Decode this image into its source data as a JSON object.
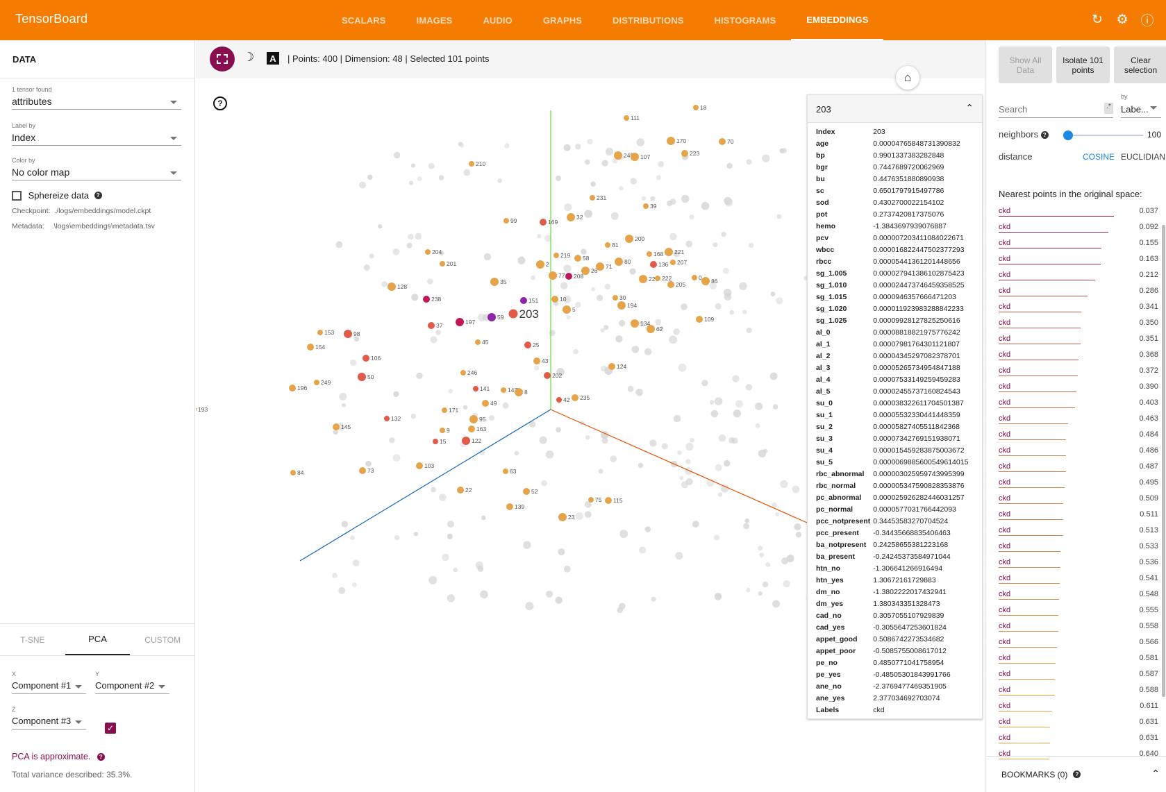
{
  "app": {
    "title": "TensorBoard"
  },
  "nav": {
    "tabs": [
      "SCALARS",
      "IMAGES",
      "AUDIO",
      "GRAPHS",
      "DISTRIBUTIONS",
      "HISTOGRAMS",
      "EMBEDDINGS"
    ],
    "active": "EMBEDDINGS",
    "icons": [
      "refresh-icon",
      "gear-icon",
      "help-icon"
    ]
  },
  "data_panel": {
    "header": "DATA",
    "tensor_count": "1 tensor found",
    "tensor_value": "attributes",
    "label_by_label": "Label by",
    "label_by_value": "Index",
    "color_by_label": "Color by",
    "color_by_value": "No color map",
    "sphereize_label": "Sphereize data",
    "checkpoint_label": "Checkpoint:",
    "checkpoint_value": "./logs/embeddings/model.ckpt",
    "metadata_label": "Metadata:",
    "metadata_value": ".\\logs\\embeddings\\metadata.tsv"
  },
  "projection": {
    "tabs": [
      "T-SNE",
      "PCA",
      "CUSTOM"
    ],
    "active": "PCA",
    "x_label": "X",
    "x_value": "Component #1",
    "y_label": "Y",
    "y_value": "Component #2",
    "z_label": "Z",
    "z_value": "Component #3",
    "pca_note": "PCA is approximate.",
    "variance": "Total variance described: 35.3%."
  },
  "toolbar": {
    "stats": "Points: 400 | Dimension: 48 | Selected 101 points"
  },
  "inspector": {
    "title": "203",
    "rows": [
      [
        "Index",
        "203"
      ],
      [
        "age",
        "0.00004765848731390832"
      ],
      [
        "bp",
        "0.9901337383282848"
      ],
      [
        "bgr",
        "0.7447689720062969"
      ],
      [
        "bu",
        "0.4476351880890938"
      ],
      [
        "sc",
        "0.6501797915497786"
      ],
      [
        "sod",
        "0.4302700022154102"
      ],
      [
        "pot",
        "0.2737420817375076"
      ],
      [
        "hemo",
        "-1.3843697939076887"
      ],
      [
        "pcv",
        "0.000007203411084022671"
      ],
      [
        "wbcc",
        "0.000016822447502377293"
      ],
      [
        "rbcc",
        "0.0000544136120144865​6"
      ],
      [
        "sg_1.005",
        "0.000027941386102875423"
      ],
      [
        "sg_1.010",
        "0.000024473746459358525"
      ],
      [
        "sg_1.015",
        "0.0000946357666471203"
      ],
      [
        "sg_1.020",
        "0.000011923983288842233"
      ],
      [
        "sg_1.025",
        "0.000099281278252506​16"
      ],
      [
        "al_0",
        "0.000088188219757762​42"
      ],
      [
        "al_1",
        "0.00007981764301121807"
      ],
      [
        "al_2",
        "0.00004345297082378701"
      ],
      [
        "al_3",
        "0.00005265734954847188"
      ],
      [
        "al_4",
        "0.00007533149259459283"
      ],
      [
        "al_5",
        "0.00002455737160824543"
      ],
      [
        "su_0",
        "0.00003832261170450138​7"
      ],
      [
        "su_1",
        "0.00005532330441448359"
      ],
      [
        "su_2",
        "0.00005827405511842368"
      ],
      [
        "su_3",
        "0.00007342769151938071"
      ],
      [
        "su_4",
        "0.000015459283875003672"
      ],
      [
        "su_5",
        "0.0000069885600549614015"
      ],
      [
        "rbc_abnormal",
        "0.000003025959743995399"
      ],
      [
        "rbc_normal",
        "0.000005347590828353876"
      ],
      [
        "pc_abnormal",
        "0.000025926282446031257"
      ],
      [
        "pc_normal",
        "0.00005770317664420​93"
      ],
      [
        "pcc_notpresent",
        "0.34453583270704524"
      ],
      [
        "pcc_present",
        "-0.34435668835406463"
      ],
      [
        "ba_notpresent",
        "0.24258655381223168"
      ],
      [
        "ba_present",
        "-0.24245373584971044"
      ],
      [
        "htn_no",
        "-1.306641266916494"
      ],
      [
        "htn_yes",
        "1.30672161729883"
      ],
      [
        "dm_no",
        "-1.3802222017432941"
      ],
      [
        "dm_yes",
        "1.380343351328473"
      ],
      [
        "cad_no",
        "0.3057055107929839"
      ],
      [
        "cad_yes",
        "-0.30556472536018​24"
      ],
      [
        "appet_good",
        "0.5086742273534682"
      ],
      [
        "appet_poor",
        "-0.5085755008617012"
      ],
      [
        "pe_no",
        "0.4850771041758954"
      ],
      [
        "pe_yes",
        "-0.48505301843991766"
      ],
      [
        "ane_no",
        "-2.3769477469351905"
      ],
      [
        "ane_yes",
        "2.377034692703074"
      ],
      [
        "Labels",
        "ckd"
      ]
    ]
  },
  "inspector_panel": {
    "show_all": "Show All Data",
    "isolate": "Isolate 101 points",
    "clear": "Clear selection",
    "search_placeholder": "Search",
    "regex": ".*",
    "by_label": "by",
    "by_value": "Labe...",
    "neighbors_label": "neighbors",
    "neighbors_value": "100",
    "neighbors_fraction": 1.0,
    "distance_label": "distance",
    "cosine": "COSINE",
    "euclidian": "EUCLIDIAN",
    "nearest_title": "Nearest points in the original space:",
    "nearest": [
      [
        "ckd",
        "0.037"
      ],
      [
        "ckd",
        "0.092"
      ],
      [
        "ckd",
        "0.155"
      ],
      [
        "ckd",
        "0.163"
      ],
      [
        "ckd",
        "0.212"
      ],
      [
        "ckd",
        "0.286"
      ],
      [
        "ckd",
        "0.341"
      ],
      [
        "ckd",
        "0.350"
      ],
      [
        "ckd",
        "0.351"
      ],
      [
        "ckd",
        "0.368"
      ],
      [
        "ckd",
        "0.372"
      ],
      [
        "ckd",
        "0.390"
      ],
      [
        "ckd",
        "0.403"
      ],
      [
        "ckd",
        "0.463"
      ],
      [
        "ckd",
        "0.484"
      ],
      [
        "ckd",
        "0.486"
      ],
      [
        "ckd",
        "0.487"
      ],
      [
        "ckd",
        "0.495"
      ],
      [
        "ckd",
        "0.509"
      ],
      [
        "ckd",
        "0.511"
      ],
      [
        "ckd",
        "0.513"
      ],
      [
        "ckd",
        "0.533"
      ],
      [
        "ckd",
        "0.536"
      ],
      [
        "ckd",
        "0.541"
      ],
      [
        "ckd",
        "0.548"
      ],
      [
        "ckd",
        "0.555"
      ],
      [
        "ckd",
        "0.558"
      ],
      [
        "ckd",
        "0.566"
      ],
      [
        "ckd",
        "0.581"
      ],
      [
        "ckd",
        "0.587"
      ],
      [
        "ckd",
        "0.588"
      ],
      [
        "ckd",
        "0.611"
      ],
      [
        "ckd",
        "0.631"
      ],
      [
        "ckd",
        "0.631"
      ],
      [
        "ckd",
        "0.640"
      ]
    ],
    "bookmarks": "BOOKMARKS (0)"
  },
  "colors": {
    "brand": "#f57c00",
    "accent": "#880e4f",
    "point_orange": "#e6a44a",
    "point_red": "#e25a4a",
    "point_magenta": "#c2185b",
    "point_purple": "#8e24aa",
    "point_gray": "#d6d6d6",
    "axis_x": "#e65100",
    "axis_y": "#66dd44",
    "axis_z": "#1565c0"
  },
  "scene": {
    "selected_label": "203",
    "labeled_points": [
      [
        "18",
        "o"
      ],
      [
        "111",
        "o"
      ],
      [
        "70",
        "o"
      ],
      [
        "170",
        "o"
      ],
      [
        "248",
        "o"
      ],
      [
        "107",
        "o"
      ],
      [
        "223",
        "o"
      ],
      [
        "210",
        "o"
      ],
      [
        "231",
        "o"
      ],
      [
        "39",
        "o"
      ],
      [
        "99",
        "o"
      ],
      [
        "169",
        "r"
      ],
      [
        "32",
        "o"
      ],
      [
        "81",
        "o"
      ],
      [
        "200",
        "o"
      ],
      [
        "168",
        "o"
      ],
      [
        "221",
        "o"
      ],
      [
        "204",
        "o"
      ],
      [
        "219",
        "o"
      ],
      [
        "58",
        "o"
      ],
      [
        "80",
        "o"
      ],
      [
        "136",
        "r"
      ],
      [
        "207",
        "o"
      ],
      [
        "201",
        "o"
      ],
      [
        "2",
        "o"
      ],
      [
        "71",
        "o"
      ],
      [
        "26",
        "o"
      ],
      [
        "77",
        "o"
      ],
      [
        "208",
        "m"
      ],
      [
        "227",
        "o"
      ],
      [
        "222",
        "o"
      ],
      [
        "0",
        "o"
      ],
      [
        "86",
        "o"
      ],
      [
        "128",
        "o"
      ],
      [
        "35",
        "o"
      ],
      [
        "205",
        "o"
      ],
      [
        "238",
        "m"
      ],
      [
        "151",
        "p"
      ],
      [
        "10",
        "o"
      ],
      [
        "30",
        "o"
      ],
      [
        "194",
        "o"
      ],
      [
        "5",
        "o"
      ],
      [
        "37",
        "r"
      ],
      [
        "197",
        "m"
      ],
      [
        "59",
        "p"
      ],
      [
        "203",
        "r"
      ],
      [
        "109",
        "o"
      ],
      [
        "153",
        "o"
      ],
      [
        "98",
        "r"
      ],
      [
        "134",
        "o"
      ],
      [
        "62",
        "o"
      ],
      [
        "45",
        "o"
      ],
      [
        "25",
        "r"
      ],
      [
        "154",
        "o"
      ],
      [
        "106",
        "r"
      ],
      [
        "43",
        "o"
      ],
      [
        "124",
        "o"
      ],
      [
        "246",
        "o"
      ],
      [
        "50",
        "r"
      ],
      [
        "202",
        "r"
      ],
      [
        "249",
        "o"
      ],
      [
        "196",
        "o"
      ],
      [
        "141",
        "r"
      ],
      [
        "147",
        "o"
      ],
      [
        "8",
        "o"
      ],
      [
        "42",
        "r"
      ],
      [
        "235",
        "o"
      ],
      [
        "49",
        "o"
      ],
      [
        "193",
        "o"
      ],
      [
        "171",
        "o"
      ],
      [
        "132",
        "r"
      ],
      [
        "95",
        "o"
      ],
      [
        "145",
        "o"
      ],
      [
        "9",
        "o"
      ],
      [
        "163",
        "o"
      ],
      [
        "15",
        "r"
      ],
      [
        "122",
        "r"
      ],
      [
        "103",
        "o"
      ],
      [
        "84",
        "o"
      ],
      [
        "73",
        "o"
      ],
      [
        "63",
        "o"
      ],
      [
        "22",
        "o"
      ],
      [
        "52",
        "o"
      ],
      [
        "139",
        "o"
      ],
      [
        "75",
        "o"
      ],
      [
        "115",
        "o"
      ],
      [
        "23",
        "o"
      ]
    ]
  }
}
